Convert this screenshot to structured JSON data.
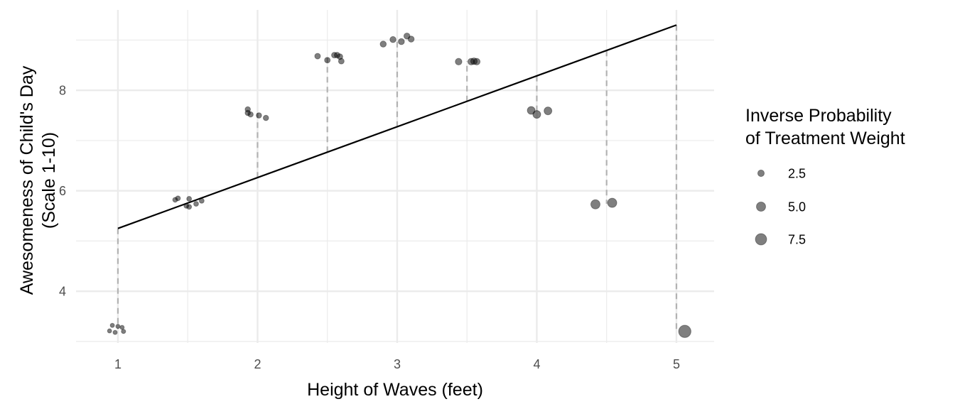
{
  "chart_data": {
    "type": "scatter",
    "xlabel": "Height of Waves (feet)",
    "ylabel": [
      "Awesomeness of Child's Day",
      "(Scale 1-10)"
    ],
    "xlim": [
      0.7,
      5.27
    ],
    "ylim": [
      2.97,
      9.6
    ],
    "x_ticks": [
      1,
      2,
      3,
      4,
      5
    ],
    "y_ticks": [
      4,
      6,
      8
    ],
    "x_minor": [
      1.5,
      2.5,
      3.5,
      4.5
    ],
    "y_minor": [
      3,
      5,
      7,
      9
    ],
    "grid": true,
    "colors": {
      "point": "#000000",
      "point_opacity": 0.5,
      "fit_line": "#000000",
      "residual": "#b3b3b3",
      "grid": "#ebebeb"
    },
    "size_legend": {
      "title": [
        "Inverse Probability",
        "of Treatment Weight"
      ],
      "placement": "right",
      "entries": [
        {
          "label": "2.5",
          "weight": 2.5
        },
        {
          "label": "5.0",
          "weight": 5.0
        },
        {
          "label": "7.5",
          "weight": 7.5
        }
      ]
    },
    "fit_line": {
      "x": [
        1,
        5
      ],
      "y": [
        5.25,
        9.3
      ]
    },
    "residuals": [
      {
        "x": 1.0,
        "y_fit": 5.25,
        "y_mean": 3.25
      },
      {
        "x": 1.5,
        "y_fit": 5.76,
        "y_mean": 5.77
      },
      {
        "x": 2.0,
        "y_fit": 6.26,
        "y_mean": 7.55
      },
      {
        "x": 2.5,
        "y_fit": 6.77,
        "y_mean": 8.65
      },
      {
        "x": 3.0,
        "y_fit": 7.27,
        "y_mean": 9.0
      },
      {
        "x": 3.5,
        "y_fit": 7.78,
        "y_mean": 8.58
      },
      {
        "x": 4.0,
        "y_fit": 8.29,
        "y_mean": 7.57
      },
      {
        "x": 4.5,
        "y_fit": 8.79,
        "y_mean": 5.74
      },
      {
        "x": 5.0,
        "y_fit": 9.3,
        "y_mean": 3.22
      }
    ],
    "points": [
      {
        "x": 0.94,
        "y": 3.21,
        "weight": 1.05
      },
      {
        "x": 0.96,
        "y": 3.32,
        "weight": 1.05
      },
      {
        "x": 0.98,
        "y": 3.18,
        "weight": 1.05
      },
      {
        "x": 1.0,
        "y": 3.3,
        "weight": 1.05
      },
      {
        "x": 1.03,
        "y": 3.28,
        "weight": 1.05
      },
      {
        "x": 1.04,
        "y": 3.2,
        "weight": 1.1
      },
      {
        "x": 1.41,
        "y": 5.82,
        "weight": 1.4
      },
      {
        "x": 1.43,
        "y": 5.85,
        "weight": 1.4
      },
      {
        "x": 1.49,
        "y": 5.7,
        "weight": 1.4
      },
      {
        "x": 1.51,
        "y": 5.84,
        "weight": 1.4
      },
      {
        "x": 1.51,
        "y": 5.68,
        "weight": 1.4
      },
      {
        "x": 1.56,
        "y": 5.74,
        "weight": 1.4
      },
      {
        "x": 1.6,
        "y": 5.8,
        "weight": 1.4
      },
      {
        "x": 1.93,
        "y": 7.62,
        "weight": 1.7
      },
      {
        "x": 1.93,
        "y": 7.55,
        "weight": 1.7
      },
      {
        "x": 1.95,
        "y": 7.52,
        "weight": 1.7
      },
      {
        "x": 2.01,
        "y": 7.5,
        "weight": 1.7
      },
      {
        "x": 2.06,
        "y": 7.45,
        "weight": 1.7
      },
      {
        "x": 2.43,
        "y": 8.68,
        "weight": 1.9
      },
      {
        "x": 2.5,
        "y": 8.6,
        "weight": 1.9
      },
      {
        "x": 2.55,
        "y": 8.7,
        "weight": 1.9
      },
      {
        "x": 2.57,
        "y": 8.7,
        "weight": 1.9
      },
      {
        "x": 2.59,
        "y": 8.67,
        "weight": 1.9
      },
      {
        "x": 2.6,
        "y": 8.58,
        "weight": 1.9
      },
      {
        "x": 2.9,
        "y": 8.92,
        "weight": 2.2
      },
      {
        "x": 2.97,
        "y": 9.01,
        "weight": 2.2
      },
      {
        "x": 3.03,
        "y": 8.97,
        "weight": 2.2
      },
      {
        "x": 3.07,
        "y": 9.08,
        "weight": 2.2
      },
      {
        "x": 3.1,
        "y": 9.02,
        "weight": 2.2
      },
      {
        "x": 3.44,
        "y": 8.57,
        "weight": 2.6
      },
      {
        "x": 3.53,
        "y": 8.57,
        "weight": 2.6
      },
      {
        "x": 3.55,
        "y": 8.58,
        "weight": 2.6
      },
      {
        "x": 3.57,
        "y": 8.57,
        "weight": 2.6
      },
      {
        "x": 3.96,
        "y": 7.6,
        "weight": 3.6
      },
      {
        "x": 4.0,
        "y": 7.52,
        "weight": 3.6
      },
      {
        "x": 4.08,
        "y": 7.59,
        "weight": 3.6
      },
      {
        "x": 4.42,
        "y": 5.73,
        "weight": 5.0
      },
      {
        "x": 4.54,
        "y": 5.76,
        "weight": 5.0
      },
      {
        "x": 5.06,
        "y": 3.2,
        "weight": 9.0
      }
    ]
  }
}
